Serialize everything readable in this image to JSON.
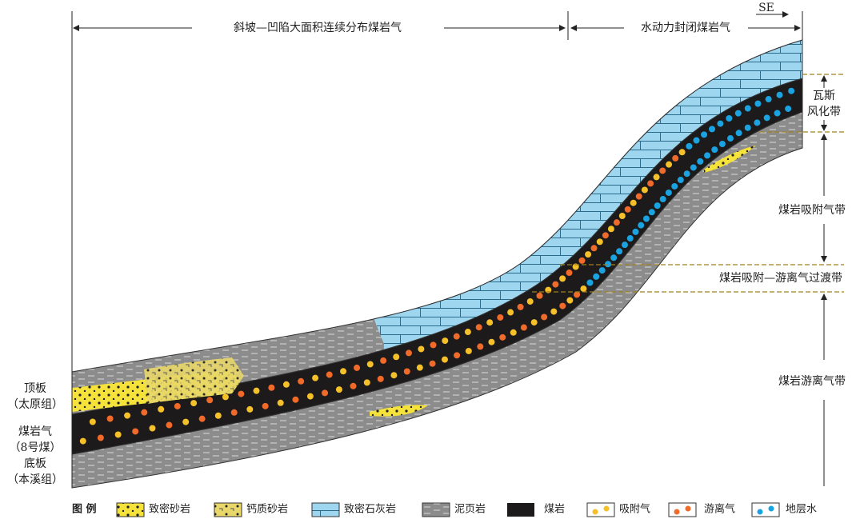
{
  "header": {
    "direction": "SE",
    "spans": [
      "斜坡—凹陷大面积连续分布煤岩气",
      "水动力封闭煤岩气"
    ]
  },
  "zones": [
    {
      "lines": [
        "瓦斯",
        "风化带"
      ]
    },
    {
      "lines": [
        "煤岩吸附气带"
      ]
    },
    {
      "lines": [
        "煤岩吸附—游离气过渡带"
      ]
    },
    {
      "lines": [
        "煤岩游离气带"
      ]
    }
  ],
  "layers": [
    {
      "lines": [
        "顶板",
        "（太原组）"
      ]
    },
    {
      "lines": [
        "煤岩气",
        "（8号煤）"
      ]
    },
    {
      "lines": [
        "底板",
        "（本溪组）"
      ]
    }
  ],
  "legend": {
    "title": "图 例",
    "items": [
      "致密砂岩",
      "钙质砂岩",
      "致密石灰岩",
      "泥页岩",
      "煤岩",
      "吸附气",
      "游离气",
      "地层水"
    ]
  }
}
